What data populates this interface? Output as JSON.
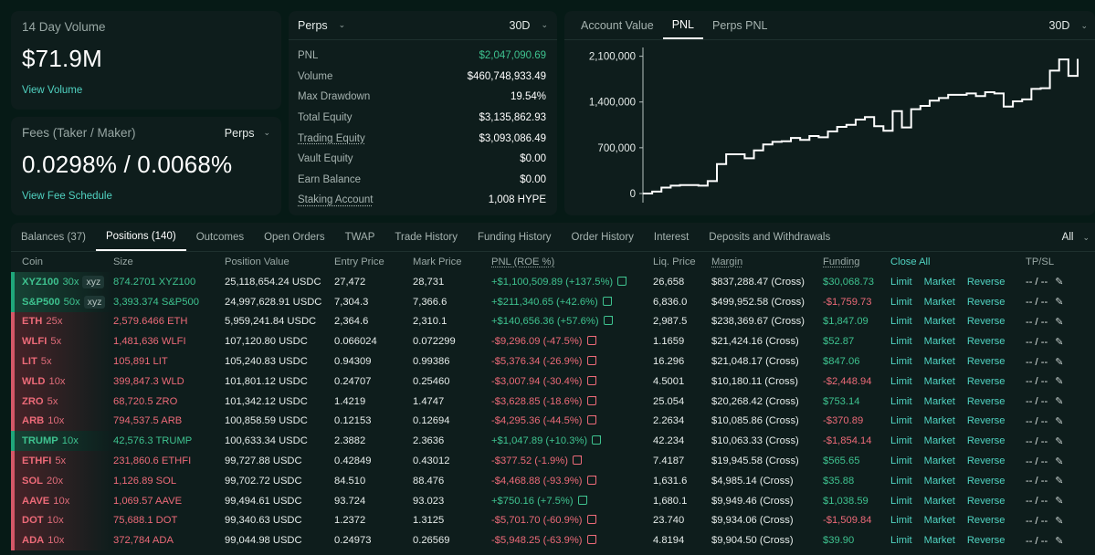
{
  "volume_card": {
    "label": "14 Day Volume",
    "value": "$71.9M",
    "link": "View Volume"
  },
  "fees_card": {
    "label": "Fees (Taker / Maker)",
    "selector": "Perps",
    "value": "0.0298% / 0.0068%",
    "link": "View Fee Schedule"
  },
  "stats": {
    "selector": "Perps",
    "range": "30D",
    "rows": [
      {
        "label": "PNL",
        "value": "$2,047,090.69",
        "positive": true
      },
      {
        "label": "Volume",
        "value": "$460,748,933.49"
      },
      {
        "label": "Max Drawdown",
        "value": "19.54%"
      },
      {
        "label": "Total Equity",
        "value": "$3,135,862.93"
      },
      {
        "label": "Trading Equity",
        "value": "$3,093,086.49",
        "underline": true
      },
      {
        "label": "Vault Equity",
        "value": "$0.00"
      },
      {
        "label": "Earn Balance",
        "value": "$0.00"
      },
      {
        "label": "Staking Account",
        "value": "1,008 HYPE",
        "underline": true
      }
    ]
  },
  "chart_panel": {
    "tabs": [
      "Account Value",
      "PNL",
      "Perps PNL"
    ],
    "active_tab": "PNL",
    "range": "30D"
  },
  "chart_data": {
    "type": "line",
    "title": "",
    "xlabel": "",
    "ylabel": "",
    "ylim": [
      0,
      2150000
    ],
    "y_ticks": [
      "0",
      "700,000",
      "1,400,000",
      "2,100,000"
    ],
    "y_tick_values": [
      0,
      700000,
      1400000,
      2100000
    ],
    "line_color": "#ffffff",
    "series": [
      {
        "values": [
          0,
          30000,
          90000,
          120000,
          130000,
          130000,
          120000,
          190000,
          450000,
          600000,
          600000,
          540000,
          660000,
          750000,
          790000,
          800000,
          850000,
          820000,
          880000,
          860000,
          950000,
          1020000,
          1050000,
          1130000,
          1170000,
          1030000,
          960000,
          1260000,
          1010000,
          1290000,
          1340000,
          1420000,
          1460000,
          1510000,
          1510000,
          1530000,
          1490000,
          1550000,
          1530000,
          1330000,
          1410000,
          1440000,
          1600000,
          1610000,
          1880000,
          2050000,
          1800000,
          2060000
        ]
      }
    ]
  },
  "bottom_tabs": {
    "tabs": [
      "Balances (37)",
      "Positions (140)",
      "Outcomes",
      "Open Orders",
      "TWAP",
      "Trade History",
      "Funding History",
      "Order History",
      "Interest",
      "Deposits and Withdrawals"
    ],
    "active_tab": "Positions (140)",
    "filter": "All"
  },
  "positions": {
    "columns": [
      "Coin",
      "Size",
      "Position Value",
      "Entry Price",
      "Mark Price",
      "PNL (ROE %)",
      "Liq. Price",
      "Margin",
      "Funding",
      "Close All",
      "TP/SL"
    ],
    "action_labels": {
      "limit": "Limit",
      "market": "Market",
      "reverse": "Reverse"
    },
    "rows": [
      {
        "coin": "XYZ100",
        "lev": "30x",
        "dex": "xyz",
        "side": "long",
        "size": "874.2701 XYZ100",
        "value": "25,118,654.24 USDC",
        "entry": "27,472",
        "mark": "28,731",
        "pnl": "+$1,100,509.89 (+137.5%)",
        "liq": "26,658",
        "margin": "$837,288.47 (Cross)",
        "funding": "$30,068.73",
        "funding_pos": true,
        "tpsl": "-- / --"
      },
      {
        "coin": "S&P500",
        "lev": "50x",
        "dex": "xyz",
        "side": "long",
        "size": "3,393.374 S&P500",
        "value": "24,997,628.91 USDC",
        "entry": "7,304.3",
        "mark": "7,366.6",
        "pnl": "+$211,340.65 (+42.6%)",
        "liq": "6,836.0",
        "margin": "$499,952.58 (Cross)",
        "funding": "-$1,759.73",
        "funding_pos": false,
        "tpsl": "-- / --"
      },
      {
        "coin": "ETH",
        "lev": "25x",
        "side": "short",
        "size": "2,579.6466 ETH",
        "value": "5,959,241.84 USDC",
        "entry": "2,364.6",
        "mark": "2,310.1",
        "pnl": "+$140,656.36 (+57.6%)",
        "liq": "2,987.5",
        "margin": "$238,369.67 (Cross)",
        "funding": "$1,847.09",
        "funding_pos": true,
        "tpsl": "-- / --"
      },
      {
        "coin": "WLFI",
        "lev": "5x",
        "side": "short",
        "size": "1,481,636 WLFI",
        "value": "107,120.80 USDC",
        "entry": "0.066024",
        "mark": "0.072299",
        "pnl": "-$9,296.09 (-47.5%)",
        "liq": "1.1659",
        "margin": "$21,424.16 (Cross)",
        "funding": "$52.87",
        "funding_pos": true,
        "tpsl": "-- / --"
      },
      {
        "coin": "LIT",
        "lev": "5x",
        "side": "short",
        "size": "105,891 LIT",
        "value": "105,240.83 USDC",
        "entry": "0.94309",
        "mark": "0.99386",
        "pnl": "-$5,376.34 (-26.9%)",
        "liq": "16.296",
        "margin": "$21,048.17 (Cross)",
        "funding": "$847.06",
        "funding_pos": true,
        "tpsl": "-- / --"
      },
      {
        "coin": "WLD",
        "lev": "10x",
        "side": "short",
        "size": "399,847.3 WLD",
        "value": "101,801.12 USDC",
        "entry": "0.24707",
        "mark": "0.25460",
        "pnl": "-$3,007.94 (-30.4%)",
        "liq": "4.5001",
        "margin": "$10,180.11 (Cross)",
        "funding": "-$2,448.94",
        "funding_pos": false,
        "tpsl": "-- / --"
      },
      {
        "coin": "ZRO",
        "lev": "5x",
        "side": "short",
        "size": "68,720.5 ZRO",
        "value": "101,342.12 USDC",
        "entry": "1.4219",
        "mark": "1.4747",
        "pnl": "-$3,628.85 (-18.6%)",
        "liq": "25.054",
        "margin": "$20,268.42 (Cross)",
        "funding": "$753.14",
        "funding_pos": true,
        "tpsl": "-- / --"
      },
      {
        "coin": "ARB",
        "lev": "10x",
        "side": "short",
        "size": "794,537.5 ARB",
        "value": "100,858.59 USDC",
        "entry": "0.12153",
        "mark": "0.12694",
        "pnl": "-$4,295.36 (-44.5%)",
        "liq": "2.2634",
        "margin": "$10,085.86 (Cross)",
        "funding": "-$370.89",
        "funding_pos": false,
        "tpsl": "-- / --"
      },
      {
        "coin": "TRUMP",
        "lev": "10x",
        "side": "long",
        "size": "42,576.3 TRUMP",
        "value": "100,633.34 USDC",
        "entry": "2.3882",
        "mark": "2.3636",
        "pnl": "+$1,047.89 (+10.3%)",
        "liq": "42.234",
        "margin": "$10,063.33 (Cross)",
        "funding": "-$1,854.14",
        "funding_pos": false,
        "tpsl": "-- / --"
      },
      {
        "coin": "ETHFI",
        "lev": "5x",
        "side": "short",
        "size": "231,860.6 ETHFI",
        "value": "99,727.88 USDC",
        "entry": "0.42849",
        "mark": "0.43012",
        "pnl": "-$377.52 (-1.9%)",
        "liq": "7.4187",
        "margin": "$19,945.58 (Cross)",
        "funding": "$565.65",
        "funding_pos": true,
        "tpsl": "-- / --"
      },
      {
        "coin": "SOL",
        "lev": "20x",
        "side": "short",
        "size": "1,126.89 SOL",
        "value": "99,702.72 USDC",
        "entry": "84.510",
        "mark": "88.476",
        "pnl": "-$4,468.88 (-93.9%)",
        "liq": "1,631.6",
        "margin": "$4,985.14 (Cross)",
        "funding": "$35.88",
        "funding_pos": true,
        "tpsl": "-- / --"
      },
      {
        "coin": "AAVE",
        "lev": "10x",
        "side": "short",
        "size": "1,069.57 AAVE",
        "value": "99,494.61 USDC",
        "entry": "93.724",
        "mark": "93.023",
        "pnl": "+$750.16 (+7.5%)",
        "liq": "1,680.1",
        "margin": "$9,949.46 (Cross)",
        "funding": "$1,038.59",
        "funding_pos": true,
        "tpsl": "-- / --"
      },
      {
        "coin": "DOT",
        "lev": "10x",
        "side": "short",
        "size": "75,688.1 DOT",
        "value": "99,340.63 USDC",
        "entry": "1.2372",
        "mark": "1.3125",
        "pnl": "-$5,701.70 (-60.9%)",
        "liq": "23.740",
        "margin": "$9,934.06 (Cross)",
        "funding": "-$1,509.84",
        "funding_pos": false,
        "tpsl": "-- / --"
      },
      {
        "coin": "ADA",
        "lev": "10x",
        "side": "short",
        "size": "372,784 ADA",
        "value": "99,044.98 USDC",
        "entry": "0.24973",
        "mark": "0.26569",
        "pnl": "-$5,948.25 (-63.9%)",
        "liq": "4.8194",
        "margin": "$9,904.50 (Cross)",
        "funding": "$39.90",
        "funding_pos": true,
        "tpsl": "-- / --"
      }
    ]
  }
}
